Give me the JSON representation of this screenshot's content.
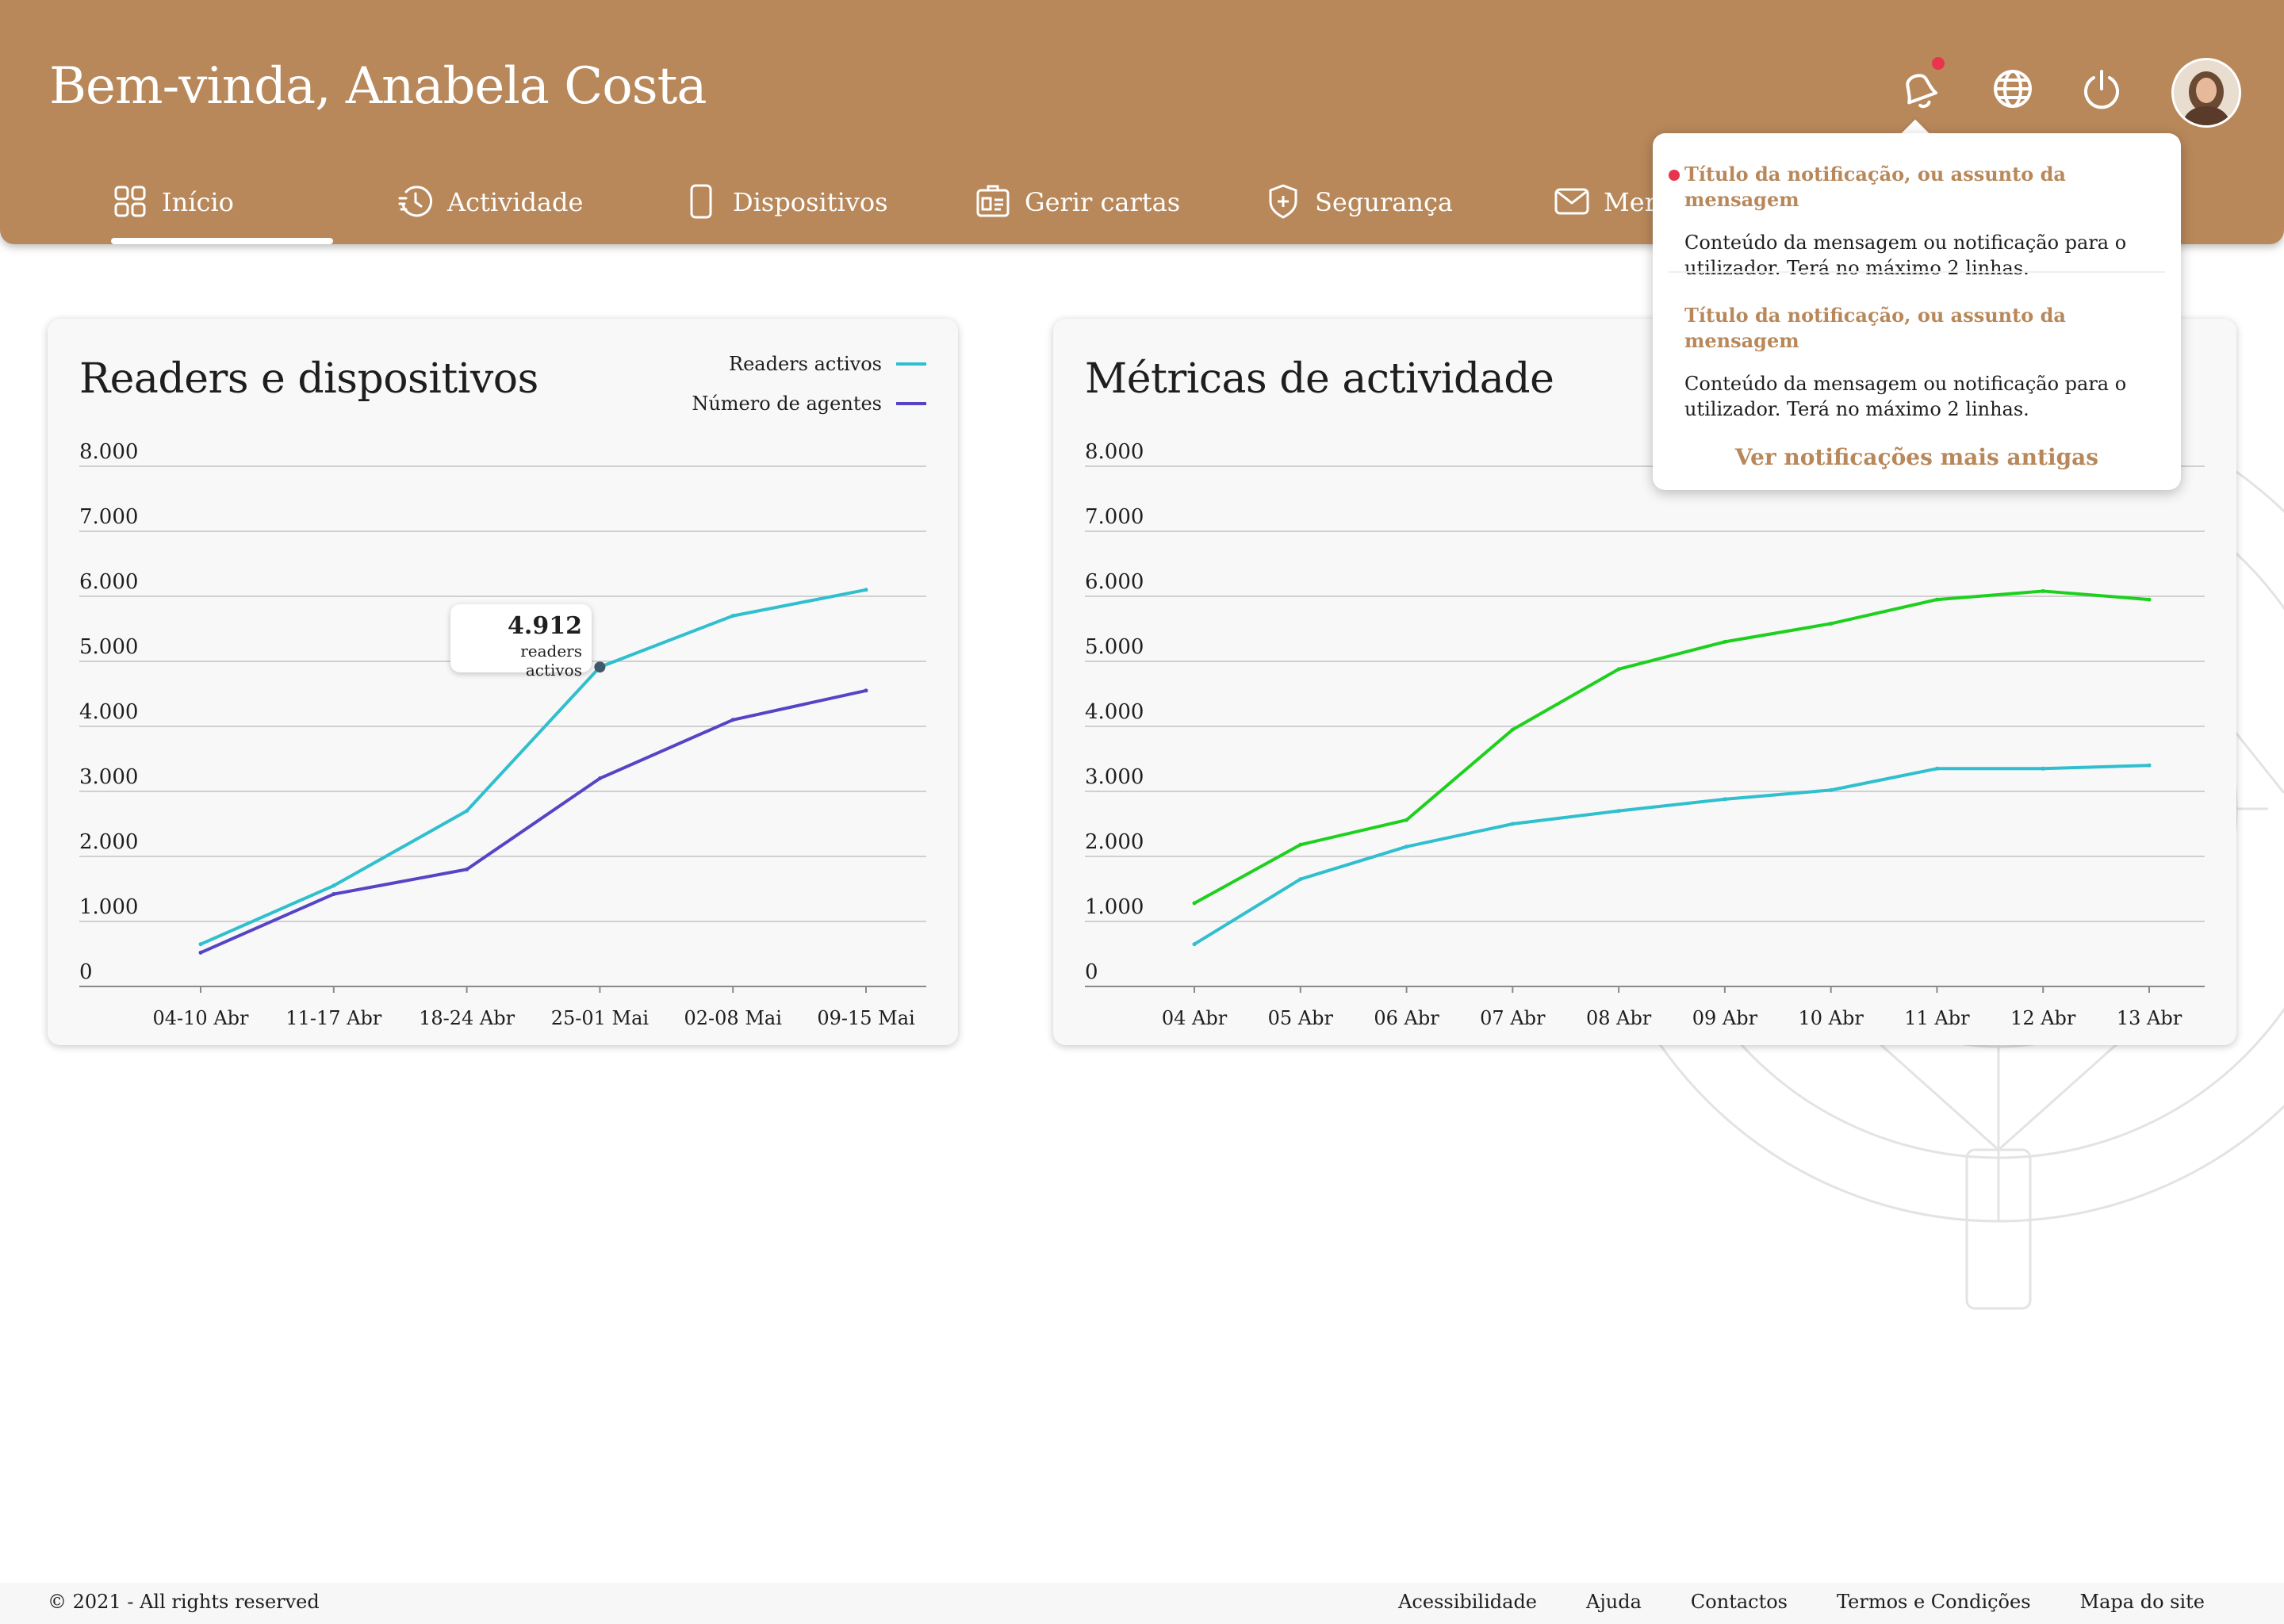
{
  "header": {
    "greeting": "Bem-vinda, Anabela Costa",
    "icons": [
      "notifications-bell-icon",
      "globe-icon",
      "power-icon",
      "avatar"
    ],
    "background_color": "#b8885a"
  },
  "nav": {
    "tabs": [
      {
        "label": "Início",
        "icon": "grid-icon",
        "active": true
      },
      {
        "label": "Actividade",
        "icon": "history-icon"
      },
      {
        "label": "Dispositivos",
        "icon": "phone-icon"
      },
      {
        "label": "Gerir cartas",
        "icon": "id-card-icon"
      },
      {
        "label": "Segurança",
        "icon": "shield-plus-icon"
      },
      {
        "label": "Mer",
        "icon": "envelope-icon"
      }
    ]
  },
  "card1": {
    "title": "Readers e dispositivos"
  },
  "card2": {
    "title": "Métricas de actividade"
  },
  "tooltip": {
    "value": "4.912",
    "label": "readers activos"
  },
  "notifications": {
    "items": [
      {
        "title": "Título da notificação, ou assunto da mensagem",
        "body": "Conteúdo da mensagem ou notificação para o utilizador. Terá no máximo 2 linhas.",
        "unread": true
      },
      {
        "title": "Título da notificação, ou assunto da mensagem",
        "body": "Conteúdo da mensagem ou notificação para o utilizador. Terá no máximo 2 linhas.",
        "unread": false
      }
    ],
    "more_link": "Ver notificações mais antigas"
  },
  "footer": {
    "copyright": "© 2021 - All rights reserved",
    "links": [
      "Acessibilidade",
      "Ajuda",
      "Contactos",
      "Termos e Condições",
      "Mapa do site"
    ]
  },
  "chart_data": [
    {
      "type": "line",
      "title": "Readers e dispositivos",
      "x": [
        "04-10 Abr",
        "11-17 Abr",
        "18-24 Abr",
        "25-01 Mai",
        "02-08 Mai",
        "09-15 Mai"
      ],
      "yticks": [
        "0",
        "1.000",
        "2.000",
        "3.000",
        "4.000",
        "5.000",
        "6.000",
        "7.000",
        "8.000"
      ],
      "ylim": [
        0,
        8000
      ],
      "grid": true,
      "legend": "top-right",
      "series": [
        {
          "name": "Readers activos",
          "color": "#2fbfce",
          "values": [
            650,
            1550,
            2700,
            4912,
            5700,
            6100
          ]
        },
        {
          "name": "Número de agentes",
          "color": "#5545c6",
          "values": [
            520,
            1420,
            1800,
            3200,
            4100,
            4550
          ]
        }
      ],
      "highlight": {
        "series": 0,
        "index": 3
      }
    },
    {
      "type": "line",
      "title": "Métricas de actividade",
      "x": [
        "04 Abr",
        "05 Abr",
        "06 Abr",
        "07 Abr",
        "08 Abr",
        "09 Abr",
        "10 Abr",
        "11 Abr",
        "12 Abr",
        "13 Abr"
      ],
      "yticks": [
        "0",
        "1.000",
        "2.000",
        "3.000",
        "4.000",
        "5.000",
        "6.000",
        "7.000",
        "8.000"
      ],
      "ylim": [
        0,
        8000
      ],
      "grid": true,
      "legend": "top-right",
      "series": [
        {
          "color": "#2fbfce",
          "values": [
            650,
            1650,
            2150,
            2500,
            2700,
            2880,
            3020,
            3350,
            3350,
            3400
          ]
        },
        {
          "color": "#1ed01e",
          "values": [
            1280,
            2180,
            2560,
            3950,
            4880,
            5300,
            5580,
            5950,
            6080,
            5950
          ]
        }
      ]
    }
  ]
}
